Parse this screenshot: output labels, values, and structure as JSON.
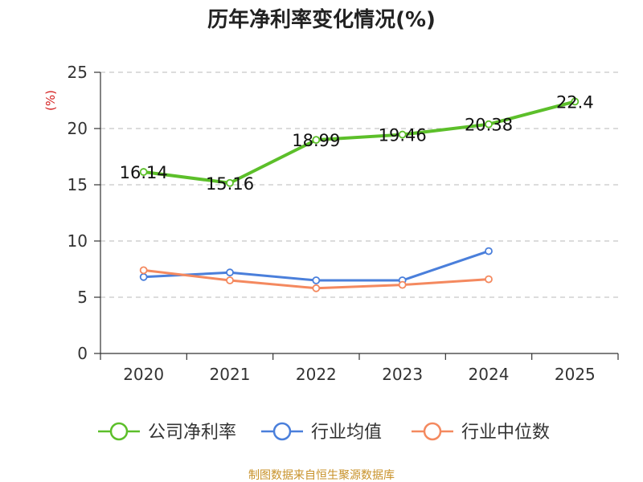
{
  "chart_data": {
    "type": "line",
    "title": "历年净利率变化情况(%)",
    "ylabel": "(%)",
    "xlabel": "",
    "categories": [
      "2020",
      "2021",
      "2022",
      "2023",
      "2024",
      "2025"
    ],
    "ylim": [
      0,
      25
    ],
    "yticks": [
      0,
      5,
      10,
      15,
      20,
      25
    ],
    "grid": true,
    "legend_position": "bottom",
    "series": [
      {
        "name": "公司净利率",
        "color": "#5cbf2a",
        "values": [
          16.14,
          15.16,
          18.99,
          19.46,
          20.38,
          22.4
        ],
        "labels": [
          "16.14",
          "15.16",
          "18.99",
          "19.46",
          "20.38",
          "22.4"
        ]
      },
      {
        "name": "行业均值",
        "color": "#4a7fdb",
        "values": [
          6.8,
          7.2,
          6.5,
          6.5,
          9.1,
          null
        ]
      },
      {
        "name": "行业中位数",
        "color": "#f4895f",
        "values": [
          7.4,
          6.5,
          5.8,
          6.1,
          6.6,
          null
        ]
      }
    ],
    "source": "制图数据来自恒生聚源数据库"
  }
}
